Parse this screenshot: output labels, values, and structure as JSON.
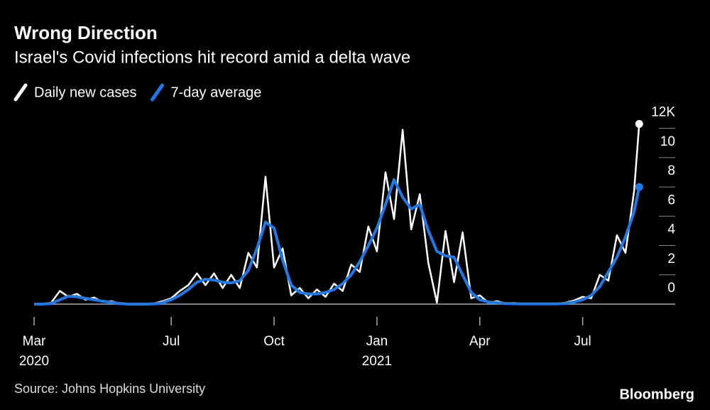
{
  "chart_data": {
    "type": "line",
    "title": "Wrong Direction",
    "subtitle": "Israel's Covid infections hit record amid a delta wave",
    "source": "Source: Johns Hopkins University",
    "brand": "Bloomberg",
    "x": [
      0,
      0.25,
      0.5,
      0.75,
      1,
      1.25,
      1.5,
      1.75,
      2,
      2.25,
      2.5,
      2.75,
      3,
      3.25,
      3.5,
      3.75,
      4,
      4.25,
      4.5,
      4.75,
      5,
      5.25,
      5.5,
      5.75,
      6,
      6.25,
      6.5,
      6.75,
      7,
      7.25,
      7.5,
      7.75,
      8,
      8.25,
      8.5,
      8.75,
      9,
      9.25,
      9.5,
      9.75,
      10,
      10.25,
      10.5,
      10.75,
      11,
      11.25,
      11.5,
      11.75,
      12,
      12.25,
      12.5,
      12.75,
      13,
      13.25,
      13.5,
      13.75,
      14,
      14.25,
      14.5,
      14.75,
      15,
      15.25,
      15.5,
      15.75,
      16,
      16.25,
      16.5,
      16.75,
      17,
      17.25,
      17.5,
      17.65
    ],
    "series": [
      {
        "name": "Daily new cases",
        "color": "#ffffff",
        "values": [
          0,
          0.02,
          0.1,
          0.9,
          0.5,
          0.7,
          0.3,
          0.45,
          0.15,
          0.2,
          0.03,
          0.02,
          0,
          0.03,
          0.05,
          0.2,
          0.4,
          0.9,
          1.3,
          2.1,
          1.3,
          2.1,
          1.1,
          2.0,
          1.1,
          3.5,
          2.5,
          8.7,
          2.5,
          3.8,
          0.6,
          1.1,
          0.4,
          1.0,
          0.5,
          1.4,
          0.9,
          2.7,
          2.2,
          5.3,
          3.6,
          9.0,
          5.8,
          11.9,
          5.1,
          7.5,
          2.8,
          0.1,
          5.0,
          1.5,
          4.9,
          0.4,
          0.6,
          0.1,
          0.2,
          0.05,
          0.08,
          0.02,
          0.04,
          0.02,
          0.04,
          0.02,
          0.1,
          0.25,
          0.5,
          0.4,
          2.0,
          1.6,
          4.7,
          3.5,
          7.7,
          12.3
        ]
      },
      {
        "name": "7-day average",
        "color": "#1f7ae8",
        "values": [
          0,
          0,
          0.05,
          0.3,
          0.55,
          0.5,
          0.4,
          0.3,
          0.2,
          0.12,
          0.05,
          0,
          0,
          0,
          0.02,
          0.1,
          0.3,
          0.6,
          1.0,
          1.5,
          1.7,
          1.65,
          1.5,
          1.45,
          1.6,
          2.3,
          3.8,
          5.6,
          5.2,
          3.0,
          1.3,
          0.8,
          0.7,
          0.7,
          0.8,
          1.0,
          1.4,
          2.0,
          2.9,
          4.0,
          5.2,
          6.8,
          8.5,
          7.3,
          6.5,
          6.8,
          5.0,
          3.6,
          3.3,
          3.2,
          2.0,
          0.8,
          0.3,
          0.15,
          0.1,
          0.05,
          0.03,
          0.02,
          0.02,
          0.02,
          0.02,
          0.02,
          0.05,
          0.15,
          0.3,
          0.6,
          1.2,
          2.2,
          3.2,
          4.6,
          6.3,
          8.0
        ]
      }
    ],
    "xlim": [
      0,
      18.7
    ],
    "xticks": [
      {
        "value": 0,
        "label": "Mar"
      },
      {
        "value": 4,
        "label": "Jul"
      },
      {
        "value": 7,
        "label": "Oct"
      },
      {
        "value": 10,
        "label": "Jan"
      },
      {
        "value": 13,
        "label": "Apr"
      },
      {
        "value": 16,
        "label": "Jul"
      }
    ],
    "year_labels": [
      {
        "value": 0,
        "label": "2020"
      },
      {
        "value": 10,
        "label": "2021"
      }
    ],
    "ylim": [
      0,
      13
    ],
    "yticks": [
      0,
      2,
      4,
      6,
      8,
      10,
      {
        "value": 12,
        "label": "12K"
      }
    ],
    "end_markers": true
  }
}
